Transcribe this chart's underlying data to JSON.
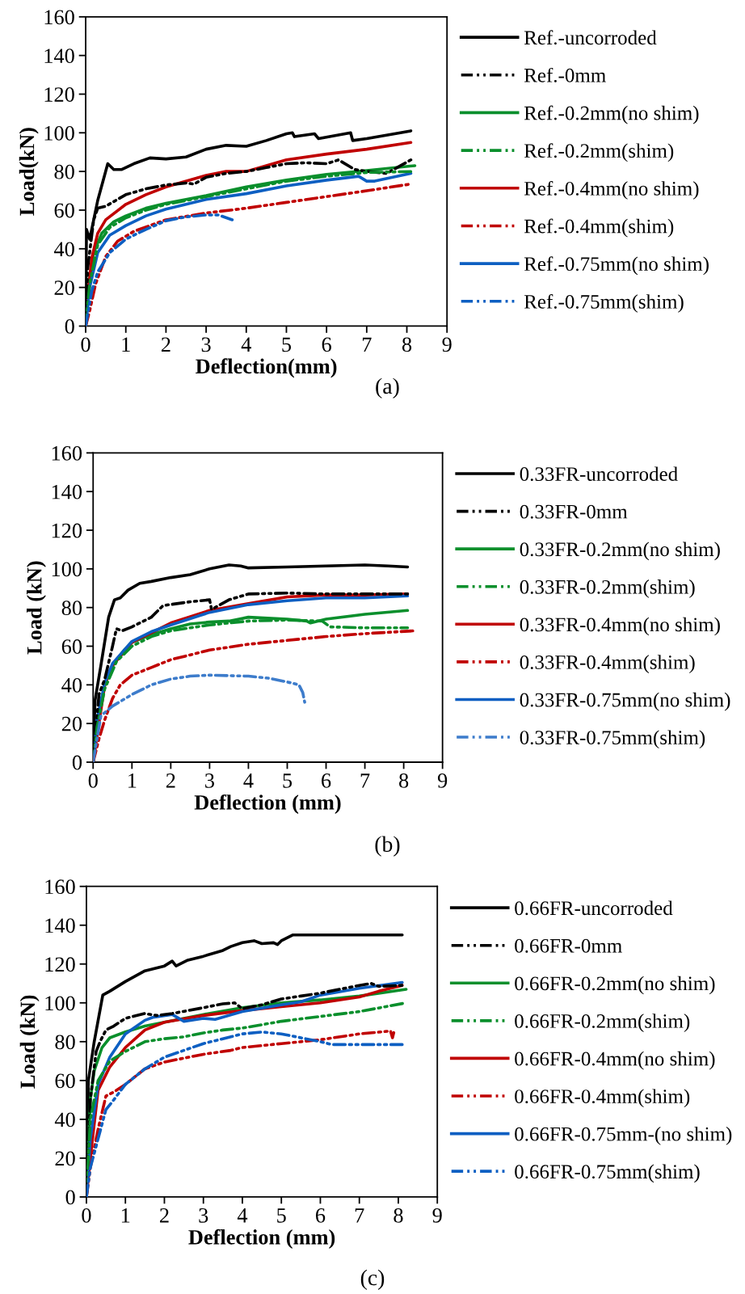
{
  "chart_data": [
    {
      "type": "line",
      "xlabel": "Deflection(mm)",
      "ylabel": "Load(kN)",
      "xlim": [
        0,
        9
      ],
      "xticks": [
        0,
        1,
        2,
        3,
        4,
        5,
        6,
        7,
        8,
        9
      ],
      "ylim": [
        0,
        160
      ],
      "yticks": [
        0,
        20,
        40,
        60,
        80,
        100,
        120,
        140,
        160
      ],
      "legend": "right",
      "annotations": [
        "(a)"
      ],
      "series": [
        {
          "name": "Ref.-uncorroded",
          "color": "#000000",
          "line_style": "solid",
          "x": [
            0,
            0.02,
            0.1,
            0.3,
            0.55,
            0.7,
            0.9,
            1.2,
            1.6,
            2.0,
            2.5,
            3.0,
            3.5,
            4.0,
            4.5,
            5.0,
            5.15,
            5.2,
            5.7,
            5.8,
            6.6,
            6.65,
            7.0,
            8.1
          ],
          "values": [
            0,
            50,
            45,
            65,
            84,
            81,
            81,
            84,
            87,
            86.5,
            87.5,
            91.5,
            93.5,
            93,
            96,
            99.5,
            100,
            98,
            99.5,
            97,
            100,
            96,
            97,
            101
          ]
        },
        {
          "name": "Ref.-0mm",
          "color": "#000000",
          "line_style": "dashed",
          "x": [
            0,
            0.05,
            0.2,
            0.3,
            0.5,
            1.0,
            1.5,
            2.0,
            2.5,
            2.7,
            3.0,
            3.5,
            4.0,
            4.5,
            5.0,
            5.5,
            6.0,
            6.3,
            6.7,
            7.0,
            7.5,
            8.1
          ],
          "values": [
            0,
            30,
            55,
            61,
            62,
            68,
            71,
            73,
            74,
            73.5,
            77,
            79,
            80,
            82,
            84,
            84.5,
            84,
            86,
            81,
            80,
            79,
            86
          ]
        },
        {
          "name": "Ref.-0.2mm(no shim)",
          "color": "#0a8f2c",
          "line_style": "solid",
          "x": [
            0,
            0.1,
            0.2,
            0.4,
            0.7,
            1,
            1.5,
            2,
            3,
            4,
            5,
            6,
            7,
            8.2
          ],
          "values": [
            0,
            25,
            38,
            48,
            54,
            57,
            61,
            63.5,
            67.5,
            72,
            75.5,
            78.5,
            80.5,
            83
          ]
        },
        {
          "name": "Ref.-0.2mm(shim)",
          "color": "#0a8f2c",
          "line_style": "dashed",
          "x": [
            0,
            0.1,
            0.3,
            0.6,
            1,
            1.5,
            2,
            3,
            4,
            5,
            6,
            7,
            8.2
          ],
          "values": [
            0,
            22,
            42,
            51,
            56,
            60,
            63,
            67,
            71,
            75,
            77.5,
            79.5,
            80
          ]
        },
        {
          "name": "Ref.-0.4mm(no shim)",
          "color": "#c00000",
          "line_style": "solid",
          "x": [
            0,
            0.05,
            0.15,
            0.3,
            0.5,
            1,
            1.5,
            2,
            3,
            3.5,
            4,
            4.5,
            5,
            6,
            7,
            8.1
          ],
          "values": [
            0,
            15,
            35,
            48,
            55,
            63,
            68,
            72,
            78,
            80,
            80,
            83,
            86,
            89,
            91.5,
            95
          ]
        },
        {
          "name": "Ref.-0.4mm(shim)",
          "color": "#c00000",
          "line_style": "dashed",
          "x": [
            0,
            0.1,
            0.25,
            0.5,
            0.8,
            1.2,
            2,
            3,
            4,
            5,
            6,
            7,
            8.1
          ],
          "values": [
            0,
            8,
            22,
            36,
            44,
            49,
            55,
            58.5,
            61,
            64,
            67,
            70,
            73.5
          ]
        },
        {
          "name": "Ref.-0.75mm(no shim)",
          "color": "#0d5fc2",
          "line_style": "solid",
          "x": [
            0,
            0.1,
            0.3,
            0.6,
            1,
            1.5,
            2,
            3,
            4,
            5,
            6,
            6.8,
            7.0,
            7.2,
            8.1
          ],
          "values": [
            0,
            20,
            38,
            47,
            52,
            57,
            60.5,
            65.5,
            68.5,
            72.5,
            75.5,
            77.5,
            75,
            75,
            79
          ]
        },
        {
          "name": "Ref.-0.75mm(shim)",
          "color": "#0d5fc2",
          "line_style": "dashed",
          "x": [
            0,
            0.15,
            0.3,
            0.6,
            1,
            1.5,
            2,
            2.5,
            3,
            3.3,
            3.65
          ],
          "values": [
            0,
            18,
            28,
            38,
            45,
            50,
            54.5,
            56.5,
            57.5,
            57.5,
            55
          ]
        }
      ]
    },
    {
      "type": "line",
      "xlabel": "Deflection (mm)",
      "ylabel": "Load (kN)",
      "xlim": [
        0,
        9
      ],
      "xticks": [
        0,
        1,
        2,
        3,
        4,
        5,
        6,
        7,
        8,
        9
      ],
      "ylim": [
        0,
        160
      ],
      "yticks": [
        0,
        20,
        40,
        60,
        80,
        100,
        120,
        140,
        160
      ],
      "legend": "right",
      "annotations": [
        "(b)"
      ],
      "series": [
        {
          "name": "0.33FR-uncorroded",
          "color": "#000000",
          "line_style": "solid",
          "x": [
            0,
            0.05,
            0.2,
            0.4,
            0.55,
            0.7,
            0.9,
            1.2,
            1.5,
            2,
            2.5,
            3,
            3.5,
            3.8,
            4,
            5,
            6,
            7,
            7.6,
            8.1
          ],
          "values": [
            0,
            32,
            50,
            75,
            84,
            85,
            89,
            92.5,
            93.5,
            95.5,
            97,
            100,
            102,
            101.5,
            100.5,
            101,
            101.5,
            102,
            101.5,
            101
          ]
        },
        {
          "name": "0.33FR-0mm",
          "color": "#000000",
          "line_style": "dashed",
          "x": [
            0,
            0.15,
            0.3,
            0.5,
            0.6,
            0.75,
            1,
            1.5,
            1.8,
            2.5,
            3,
            3.05,
            3.5,
            4,
            5,
            6,
            7,
            8.1
          ],
          "values": [
            0,
            35,
            43,
            60,
            69,
            68,
            70,
            75,
            81,
            83,
            84,
            79,
            84,
            87,
            87.5,
            87,
            87,
            87
          ]
        },
        {
          "name": "0.33FR-0.2mm(no shim)",
          "color": "#0a8f2c",
          "line_style": "solid",
          "x": [
            0,
            0.1,
            0.3,
            0.5,
            0.8,
            1,
            1.5,
            2,
            2.5,
            3,
            3.5,
            4,
            4.5,
            5,
            5.5,
            5.6,
            6,
            7,
            8.1
          ],
          "values": [
            0,
            20,
            40,
            50,
            58,
            62,
            66,
            69,
            71.5,
            72.5,
            73,
            75,
            74.5,
            74,
            73,
            72,
            74,
            76.5,
            78.5
          ]
        },
        {
          "name": "0.33FR-0.2mm(shim)",
          "color": "#0a8f2c",
          "line_style": "dashed",
          "x": [
            0,
            0.1,
            0.3,
            0.6,
            1,
            1.5,
            2,
            3,
            4,
            5,
            5.9,
            6.1,
            7,
            8.1
          ],
          "values": [
            0,
            18,
            38,
            52,
            60,
            65,
            68,
            71,
            73,
            73.5,
            73,
            70,
            69.5,
            69.5
          ]
        },
        {
          "name": "0.33FR-0.4mm(no shim)",
          "color": "#c00000",
          "line_style": "solid",
          "x": [
            0,
            0.3,
            0.5,
            1,
            1.5,
            2,
            3,
            4,
            5,
            6,
            7,
            8.1
          ],
          "values": [
            0,
            40,
            50,
            62,
            67,
            72,
            78.5,
            82,
            85.5,
            86.5,
            86.5,
            87
          ]
        },
        {
          "name": "0.33FR-0.4mm(shim)",
          "color": "#c00000",
          "line_style": "dashed",
          "x": [
            0,
            0.15,
            0.3,
            0.5,
            0.7,
            1,
            1.5,
            2,
            3,
            3.5,
            4,
            5,
            6,
            7,
            8.3
          ],
          "values": [
            0,
            12,
            22,
            33,
            40,
            45,
            49,
            53,
            58,
            59.5,
            61,
            63,
            65,
            66.5,
            68
          ]
        },
        {
          "name": "0.33FR-0.75mm(no shim)",
          "color": "#0d5fc2",
          "line_style": "solid",
          "x": [
            0,
            0.1,
            0.3,
            0.5,
            1,
            1.5,
            2,
            3,
            4,
            5,
            6,
            7,
            8.1
          ],
          "values": [
            0,
            22,
            41,
            51,
            62.5,
            67.5,
            71,
            77.5,
            81.5,
            83.5,
            85,
            85,
            86
          ]
        },
        {
          "name": "0.33FR-0.75mm(shim)",
          "color": "#3d7ccb",
          "line_style": "dashed",
          "x": [
            0,
            0.1,
            0.2,
            0.5,
            1,
            1.5,
            2,
            2.5,
            3,
            4,
            4.5,
            5,
            5.3,
            5.4,
            5.45
          ],
          "values": [
            0,
            12,
            24,
            29,
            35,
            40,
            43,
            44.5,
            45,
            44.5,
            43.5,
            41.5,
            40,
            36,
            31
          ]
        }
      ]
    },
    {
      "type": "line",
      "xlabel": "Deflection (mm)",
      "ylabel": "Load (kN)",
      "xlim": [
        0,
        9
      ],
      "xticks": [
        0,
        1,
        2,
        3,
        4,
        5,
        6,
        7,
        8,
        9
      ],
      "ylim": [
        0,
        160
      ],
      "yticks": [
        0,
        20,
        40,
        60,
        80,
        100,
        120,
        140,
        160
      ],
      "legend": "right",
      "annotations": [
        "(c)"
      ],
      "series": [
        {
          "name": "0.66FR-uncorroded",
          "color": "#000000",
          "line_style": "solid",
          "x": [
            0,
            0.05,
            0.2,
            0.42,
            0.6,
            1,
            1.5,
            2,
            2.2,
            2.3,
            2.6,
            3,
            3.5,
            3.7,
            4.0,
            4.3,
            4.5,
            4.8,
            4.9,
            5.0,
            5.3,
            8.1
          ],
          "values": [
            0,
            60,
            80,
            104,
            106,
            111,
            116.5,
            119,
            121.5,
            119,
            122,
            124,
            127,
            129,
            131,
            132,
            130.5,
            131,
            130,
            132,
            135,
            135
          ]
        },
        {
          "name": "0.66FR-0mm",
          "color": "#000000",
          "line_style": "dashed",
          "x": [
            0,
            0.1,
            0.25,
            0.35,
            0.5,
            0.7,
            1,
            1.5,
            1.8,
            2.2,
            3,
            3.5,
            3.8,
            4.0,
            4.5,
            5,
            5.5,
            6,
            6.5,
            7,
            7.3,
            7.5,
            8.1
          ],
          "values": [
            0,
            50,
            75,
            80,
            86,
            88,
            92,
            94.5,
            93.5,
            94.5,
            97.5,
            99.5,
            100,
            97,
            99,
            102,
            103.5,
            105,
            107,
            109,
            110,
            108.5,
            109
          ]
        },
        {
          "name": "0.66FR-0.2mm(no shim)",
          "color": "#0a8f2c",
          "line_style": "solid",
          "x": [
            0,
            0.1,
            0.2,
            0.4,
            0.6,
            1,
            1.5,
            2,
            3,
            4,
            5,
            6,
            7,
            8.2
          ],
          "values": [
            0,
            50,
            65,
            77,
            82,
            85,
            88,
            90,
            94,
            97.5,
            100,
            101.5,
            103.5,
            107
          ]
        },
        {
          "name": "0.66FR-0.2mm(shim)",
          "color": "#0a8f2c",
          "line_style": "dashed",
          "x": [
            0,
            0.1,
            0.3,
            0.6,
            1,
            1.5,
            2,
            2.5,
            3,
            3.5,
            4,
            5,
            6,
            7,
            8.2
          ],
          "values": [
            0,
            40,
            60,
            70,
            75,
            80,
            81.5,
            82.5,
            84.5,
            86,
            87,
            90.5,
            93,
            95.5,
            100
          ]
        },
        {
          "name": "0.66FR-0.4mm(no shim)",
          "color": "#c00000",
          "line_style": "solid",
          "x": [
            0,
            0.1,
            0.3,
            0.6,
            1,
            1.5,
            2,
            3,
            4,
            5,
            6,
            7,
            7.5,
            8.1
          ],
          "values": [
            0,
            20,
            55,
            67,
            77,
            86,
            90,
            93.5,
            96,
            98,
            100,
            103,
            106,
            109
          ]
        },
        {
          "name": "0.66FR-0.4mm(shim)",
          "color": "#c00000",
          "line_style": "dashed",
          "x": [
            0,
            0.1,
            0.3,
            0.5,
            0.7,
            1,
            1.5,
            2,
            3,
            3.7,
            4,
            5,
            6,
            7,
            7.8,
            7.85,
            7.9
          ],
          "values": [
            0,
            15,
            35,
            52,
            54,
            58,
            66,
            69.5,
            73.5,
            75.5,
            77,
            79,
            81,
            84,
            85.5,
            82,
            86
          ]
        },
        {
          "name": "0.66FR-0.75mm-(no shim)",
          "color": "#0d5fc2",
          "line_style": "solid",
          "x": [
            0,
            0.1,
            0.3,
            0.6,
            1,
            1.5,
            1.7,
            2.2,
            2.5,
            3,
            3.3,
            4,
            5,
            5.5,
            6,
            7,
            8.1
          ],
          "values": [
            0,
            30,
            58,
            72,
            84,
            91,
            92.5,
            94,
            90.5,
            92,
            91.5,
            95.5,
            99,
            100.5,
            104,
            107.5,
            110.5
          ]
        },
        {
          "name": "0.66FR-0.75mm(shim)",
          "color": "#0d5fc2",
          "line_style": "dashed",
          "x": [
            0,
            0.1,
            0.3,
            0.5,
            0.7,
            1,
            1.5,
            2,
            3,
            4,
            4.5,
            5,
            5.5,
            6,
            6.3,
            7,
            8.1
          ],
          "values": [
            0,
            15,
            30,
            45,
            50,
            58,
            66,
            72,
            79,
            84,
            85,
            84,
            82,
            80,
            78.5,
            78.5,
            78.5
          ]
        }
      ]
    }
  ]
}
